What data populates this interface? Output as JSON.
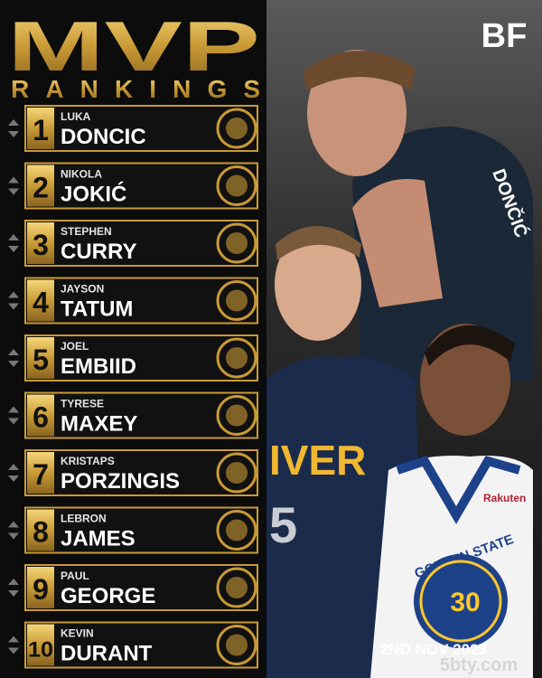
{
  "header": {
    "title": "MVP",
    "subtitle": "RANKINGS",
    "brand": "BF"
  },
  "rankings": [
    {
      "rank": 1,
      "first": "LUKA",
      "last": "DONCIC"
    },
    {
      "rank": 2,
      "first": "NIKOLA",
      "last": "JOKIĆ"
    },
    {
      "rank": 3,
      "first": "STEPHEN",
      "last": "CURRY"
    },
    {
      "rank": 4,
      "first": "JAYSON",
      "last": "TATUM"
    },
    {
      "rank": 5,
      "first": "JOEL",
      "last": "EMBIID"
    },
    {
      "rank": 6,
      "first": "TYRESE",
      "last": "MAXEY"
    },
    {
      "rank": 7,
      "first": "KRISTAPS",
      "last": "PORZINGIS"
    },
    {
      "rank": 8,
      "first": "LEBRON",
      "last": "JAMES"
    },
    {
      "rank": 9,
      "first": "PAUL",
      "last": "GEORGE"
    },
    {
      "rank": 10,
      "first": "KEVIN",
      "last": "DURANT"
    }
  ],
  "photo": {
    "jersey_1": "DONČIĆ",
    "jersey_2": "IVER",
    "jersey_2_number": "5",
    "jersey_3": "GOLDEN STATE",
    "jersey_3_number": "30",
    "sponsor": "Rakuten"
  },
  "footer": {
    "date": "2ND NOV 2023",
    "watermark": "5bty.com"
  }
}
